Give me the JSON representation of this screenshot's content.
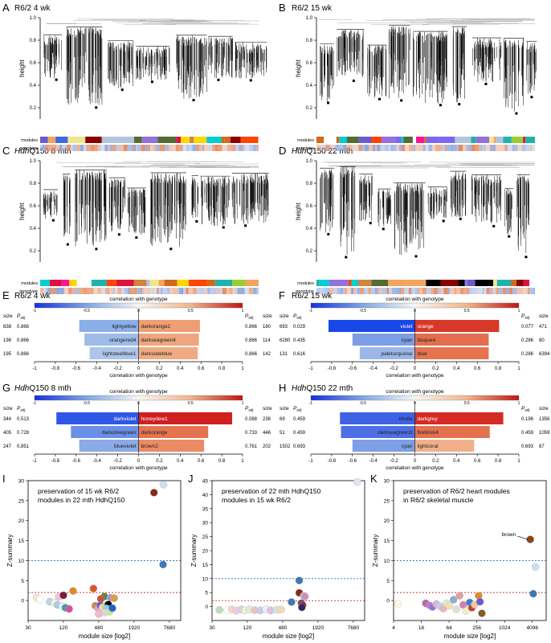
{
  "colors": {
    "modules_palette": [
      "#8b0000",
      "#ff4500",
      "#d2691e",
      "#556b2f",
      "#9acd32",
      "#6a5acd",
      "#7b68ee",
      "#ffd700",
      "#00ced1",
      "#dc143c",
      "#ffffff",
      "#000000",
      "#9370db",
      "#f0e68c",
      "#ff1493",
      "#4169e1",
      "#f4a460",
      "#b0c4de",
      "#cd853f",
      "#20b2aa"
    ],
    "genotype_low": "#8fa8dc",
    "genotype_high": "#e58a5e",
    "dendro_line": "#000000"
  },
  "panels": {
    "A": {
      "letter": "A",
      "title": "R6/2 4 wk"
    },
    "B": {
      "letter": "B",
      "title": "R6/2 15 wk"
    },
    "C": {
      "letter": "C",
      "title_italic": "Hdh",
      "title_rest": "Q150 8 mth"
    },
    "D": {
      "letter": "D",
      "title_italic": "Hdh",
      "title_rest": "Q150 22 mth"
    },
    "E": {
      "letter": "E",
      "title": "R6/2 4 wk"
    },
    "F": {
      "letter": "F",
      "title": "R6/2 15 wk"
    },
    "G": {
      "letter": "G",
      "title_italic": "Hdh",
      "title_rest": "Q150 8 mth"
    },
    "H": {
      "letter": "H",
      "title_italic": "Hdh",
      "title_rest": "Q150 22 mth"
    },
    "I": {
      "letter": "I",
      "title_lines": [
        "preservation of 15 wk R6/2",
        "modules in 22 mth HdhQ150"
      ]
    },
    "J": {
      "letter": "J",
      "title_lines": [
        "preservation of 22 mth HdhQ150",
        "modules in 15 wk R6/2"
      ]
    },
    "K": {
      "letter": "K",
      "title_lines": [
        "preservation of R6/2 heart modules",
        "in R6/2 skeletal muscle"
      ]
    }
  },
  "dendro_labels": {
    "ylabel": "height",
    "yticks": [
      "1.0",
      "0.8",
      "0.6",
      "0.4",
      "0.2"
    ],
    "modules": "modules",
    "genotype": "genotype"
  },
  "corr_labels": {
    "title": "correlation with genotype",
    "xlabel": "correlation with genotype",
    "colorbar_ticks": [
      "-1",
      "-0.5",
      "0",
      "0.5",
      "1"
    ],
    "axis_ticks": [
      "-1",
      "-0.8",
      "-0.6",
      "-0.4",
      "-0.2",
      "0",
      "0.2",
      "0.4",
      "0.6",
      "0.8",
      "1"
    ],
    "size": "size",
    "padj": "P",
    "padj_sub": "adj"
  },
  "scatter_labels": {
    "ylabel": "Z-summary",
    "xlabel": "module size [log2]",
    "yticks": [
      "0",
      "5",
      "10",
      "15",
      "20",
      "25",
      "30",
      "35",
      "40",
      "45"
    ]
  },
  "chart_data": [
    {
      "type": "bar",
      "panel": "E",
      "title": "R6/2 4 wk",
      "xlabel": "correlation with genotype",
      "xlim": [
        -1,
        1
      ],
      "negative": [
        {
          "module": "lightyellow",
          "size": 838,
          "padj": 0.866,
          "value": -0.57,
          "color": "#8aaee8"
        },
        {
          "module": "orangered4",
          "size": 198,
          "padj": 0.866,
          "value": -0.52,
          "color": "#9dbbe9"
        },
        {
          "module": "lightsteelblue1",
          "size": 195,
          "padj": 0.866,
          "value": -0.47,
          "color": "#adc5ea"
        }
      ],
      "positive": [
        {
          "module": "darkorange2",
          "size": 180,
          "padj": 0.866,
          "value": 0.59,
          "color": "#ef9e73"
        },
        {
          "module": "darkseagreen4",
          "size": 114,
          "padj": 0.866,
          "value": 0.58,
          "color": "#f0a57d"
        },
        {
          "module": "darkslateblue",
          "size": 142,
          "padj": 0.866,
          "value": 0.57,
          "color": "#f1ab83"
        }
      ]
    },
    {
      "type": "bar",
      "panel": "F",
      "title": "R6/2 15 wk",
      "xlabel": "correlation with genotype",
      "xlim": [
        -1,
        1
      ],
      "negative": [
        {
          "module": "violet",
          "size": 693,
          "padj": 0.029,
          "value": -0.83,
          "color": "#1a47e8"
        },
        {
          "module": "cyan",
          "size": 6280,
          "padj": 0.435,
          "value": -0.6,
          "color": "#7b9ee5"
        },
        {
          "module": "paleturquoise",
          "size": 131,
          "padj": 0.616,
          "value": -0.53,
          "color": "#9bb7e9"
        }
      ],
      "positive": [
        {
          "module": "orange",
          "size": 471,
          "padj": 0.077,
          "value": 0.81,
          "color": "#d8382a"
        },
        {
          "module": "bisque4",
          "size": 80,
          "padj": 0.286,
          "value": 0.71,
          "color": "#e36e4d"
        },
        {
          "module": "blue",
          "size": 6394,
          "padj": 0.286,
          "value": 0.71,
          "color": "#e5744f"
        }
      ]
    },
    {
      "type": "bar",
      "panel": "G",
      "title": "HdhQ150 8 mth",
      "xlabel": "correlation with genotype",
      "xlim": [
        -1,
        1
      ],
      "negative": [
        {
          "module": "darkviolet",
          "size": 344,
          "padj": 0.513,
          "value": -0.79,
          "color": "#2f57e6"
        },
        {
          "module": "darkolivegreen",
          "size": 405,
          "padj": 0.728,
          "value": -0.65,
          "color": "#6a8fe6"
        },
        {
          "module": "blueviolet",
          "size": 247,
          "padj": 0.851,
          "value": -0.57,
          "color": "#8aaae8"
        }
      ],
      "positive": [
        {
          "module": "honeydew1",
          "size": 238,
          "padj": 0.088,
          "value": 0.9,
          "color": "#cf1f1f"
        },
        {
          "module": "darkorange",
          "size": 446,
          "padj": 0.733,
          "value": 0.67,
          "color": "#e4744f"
        },
        {
          "module": "brown2",
          "size": 202,
          "padj": 0.761,
          "value": 0.63,
          "color": "#eb8b63"
        }
      ]
    },
    {
      "type": "bar",
      "panel": "H",
      "title": "HdhQ150 22 mth",
      "xlabel": "correlation with genotype",
      "xlim": [
        -1,
        1
      ],
      "negative": [
        {
          "module": "thistle",
          "size": 69,
          "padj": 0.459,
          "value": -0.72,
          "color": "#3d62e6"
        },
        {
          "module": "darkseagreen3",
          "size": 51,
          "padj": 0.459,
          "value": -0.71,
          "color": "#4c6fe6"
        },
        {
          "module": "cyan",
          "size": 1502,
          "padj": 0.693,
          "value": -0.6,
          "color": "#7c9fe6"
        }
      ],
      "positive": [
        {
          "module": "darkgrey",
          "size": 1356,
          "padj": 0.196,
          "value": 0.85,
          "color": "#d52b24"
        },
        {
          "module": "firebrick4",
          "size": 1059,
          "padj": 0.459,
          "value": 0.72,
          "color": "#e3714e"
        },
        {
          "module": "lightcoral",
          "size": 87,
          "padj": 0.693,
          "value": 0.57,
          "color": "#f2b08a"
        }
      ]
    },
    {
      "type": "scatter",
      "panel": "I",
      "xlabel": "module size [log2]",
      "ylabel": "Z-summary",
      "xscale": "log2",
      "xlim": [
        30,
        12000
      ],
      "ylim": [
        -5,
        30
      ],
      "xticks": [
        "30",
        "120",
        "480",
        "1920",
        "7680"
      ],
      "yticks": [
        "0",
        "5",
        "10",
        "15",
        "20",
        "25",
        "30"
      ],
      "thresholds": [
        10,
        2
      ],
      "points": [
        {
          "x": 6100,
          "y": 29,
          "color": "#c6e2ee"
        },
        {
          "x": 4200,
          "y": 27,
          "color": "#8b2a1a"
        },
        {
          "x": 6000,
          "y": 9,
          "color": "#3f78b0"
        },
        {
          "x": 390,
          "y": 3,
          "color": "#d9582a"
        },
        {
          "x": 175,
          "y": 2.4,
          "color": "#e08a2c"
        },
        {
          "x": 42,
          "y": 0.7,
          "color": "#f4e6c8"
        },
        {
          "x": 48,
          "y": 0.3,
          "color": "#ffffff"
        },
        {
          "x": 100,
          "y": 0.9,
          "color": "#f0c4dc"
        },
        {
          "x": 120,
          "y": 1.3,
          "color": "#7a1c3c"
        },
        {
          "x": 600,
          "y": 1,
          "color": "#4a8c3a"
        },
        {
          "x": 760,
          "y": 0.7,
          "color": "#b08fdc"
        },
        {
          "x": 880,
          "y": 0.6,
          "color": "#d2a04a"
        },
        {
          "x": 520,
          "y": 0.4,
          "color": "#c8503c"
        },
        {
          "x": 70,
          "y": -0.3,
          "color": "#c0d0e8"
        },
        {
          "x": 85,
          "y": -0.6,
          "color": "#f8f4d0"
        },
        {
          "x": 95,
          "y": -1.1,
          "color": "#aac8e8"
        },
        {
          "x": 115,
          "y": -1.4,
          "color": "#e9e9ff"
        },
        {
          "x": 130,
          "y": -1.8,
          "color": "#3aa0a0"
        },
        {
          "x": 150,
          "y": -2.1,
          "color": "#d64fa0"
        },
        {
          "x": 420,
          "y": -1.3,
          "color": "#c08a5a"
        },
        {
          "x": 470,
          "y": -2,
          "color": "#f0a0b0"
        },
        {
          "x": 510,
          "y": -1.2,
          "color": "#6a5acd"
        },
        {
          "x": 560,
          "y": -1.7,
          "color": "#ffd6a0"
        },
        {
          "x": 640,
          "y": -1.2,
          "color": "#b4e0b4"
        },
        {
          "x": 700,
          "y": -1,
          "color": "#000000"
        },
        {
          "x": 650,
          "y": -2,
          "color": "#8bd0e0"
        },
        {
          "x": 730,
          "y": -2.8,
          "color": "#c4ec8c"
        },
        {
          "x": 600,
          "y": -3,
          "color": "#d8d8d8"
        },
        {
          "x": 480,
          "y": -3.4,
          "color": "#f2b8d0"
        },
        {
          "x": 820,
          "y": -1.9,
          "color": "#2060d0"
        }
      ]
    },
    {
      "type": "scatter",
      "panel": "J",
      "xlabel": "module size [log2]",
      "ylabel": "Z-summary",
      "xscale": "log2",
      "xlim": [
        30,
        12000
      ],
      "ylim": [
        -5,
        45
      ],
      "xticks": [
        "30",
        "120",
        "480",
        "1920",
        "7680"
      ],
      "yticks": [
        "0",
        "5",
        "10",
        "15",
        "20",
        "25",
        "30",
        "35",
        "40",
        "45"
      ],
      "thresholds": [
        10,
        2
      ],
      "points": [
        {
          "x": 9000,
          "y": 44.5,
          "color": "#e4e4f4"
        },
        {
          "x": 920,
          "y": 9.3,
          "color": "#3f78b0"
        },
        {
          "x": 920,
          "y": 4.9,
          "color": "#8b2a1a"
        },
        {
          "x": 1100,
          "y": 3.8,
          "color": "#c8c8c8"
        },
        {
          "x": 1150,
          "y": 3.6,
          "color": "#c98fb8"
        },
        {
          "x": 680,
          "y": 1.6,
          "color": "#3f78b0"
        },
        {
          "x": 1000,
          "y": 1.2,
          "color": "#6a3a80"
        },
        {
          "x": 1050,
          "y": 0.5,
          "color": "#8b2a1a"
        },
        {
          "x": 1020,
          "y": -0.3,
          "color": "#3a2060"
        },
        {
          "x": 40,
          "y": -1.2,
          "color": "#b8e0b8"
        },
        {
          "x": 55,
          "y": -1.3,
          "color": "#ffffff"
        },
        {
          "x": 65,
          "y": -1,
          "color": "#f0d8c8"
        },
        {
          "x": 78,
          "y": -1.5,
          "color": "#f4c8e0"
        },
        {
          "x": 95,
          "y": -1,
          "color": "#c8d8f0"
        },
        {
          "x": 110,
          "y": -1.4,
          "color": "#f8f0c8"
        },
        {
          "x": 130,
          "y": -1,
          "color": "#d8f0e0"
        },
        {
          "x": 160,
          "y": -1.3,
          "color": "#f0c0c0"
        },
        {
          "x": 200,
          "y": -1.4,
          "color": "#c8c8f0"
        },
        {
          "x": 250,
          "y": -1,
          "color": "#f0f0f0"
        },
        {
          "x": 300,
          "y": -1.4,
          "color": "#e0c0e0"
        },
        {
          "x": 380,
          "y": -1.2,
          "color": "#c8e8e8"
        },
        {
          "x": 450,
          "y": -1.1,
          "color": "#f8d8b0"
        }
      ]
    },
    {
      "type": "scatter",
      "panel": "K",
      "xlabel": "module size [log2]",
      "ylabel": "Z-summary",
      "xscale": "log2",
      "xlim": [
        4,
        8192
      ],
      "ylim": [
        -5,
        30
      ],
      "xticks": [
        "4",
        "16",
        "64",
        "256",
        "1024",
        "4096"
      ],
      "yticks": [
        "0",
        "5",
        "10",
        "15",
        "20",
        "25",
        "30"
      ],
      "thresholds": [
        10,
        2
      ],
      "annotations": [
        {
          "text": "brown",
          "x": 3700,
          "y": 15.3
        }
      ],
      "points": [
        {
          "x": 3700,
          "y": 15.3,
          "color": "#8b4513"
        },
        {
          "x": 4800,
          "y": 8.4,
          "color": "#c6e2ee"
        },
        {
          "x": 4300,
          "y": 1.7,
          "color": "#3f78b0"
        },
        {
          "x": 5,
          "y": -0.8,
          "color": "#fafae0"
        },
        {
          "x": 20,
          "y": -0.7,
          "color": "#b06aa0"
        },
        {
          "x": 24,
          "y": -1.2,
          "color": "#d070d0"
        },
        {
          "x": 28,
          "y": -1.6,
          "color": "#9a70e0"
        },
        {
          "x": 34,
          "y": -0.9,
          "color": "#e0b0d0"
        },
        {
          "x": 40,
          "y": -1.4,
          "color": "#c0d0f0"
        },
        {
          "x": 48,
          "y": -2,
          "color": "#f0b0c0"
        },
        {
          "x": 56,
          "y": -0.7,
          "color": "#d8f0c8"
        },
        {
          "x": 64,
          "y": -1.3,
          "color": "#f2e0b0"
        },
        {
          "x": 80,
          "y": 0.2,
          "color": "#8bb0d8"
        },
        {
          "x": 92,
          "y": -2.2,
          "color": "#e0e0e0"
        },
        {
          "x": 108,
          "y": 1.2,
          "color": "#e0a0a0"
        },
        {
          "x": 130,
          "y": -1.1,
          "color": "#d080b0"
        },
        {
          "x": 150,
          "y": -2.6,
          "color": "#f0f0c8"
        },
        {
          "x": 180,
          "y": -0.5,
          "color": "#3a80c0"
        },
        {
          "x": 200,
          "y": -1.8,
          "color": "#c04040"
        },
        {
          "x": 230,
          "y": -1,
          "color": "#f0c8a0"
        },
        {
          "x": 280,
          "y": 1.2,
          "color": "#e08a2c"
        },
        {
          "x": 330,
          "y": -3.2,
          "color": "#8b5a2b"
        },
        {
          "x": 300,
          "y": -0.3,
          "color": "#6a5acd"
        }
      ]
    }
  ]
}
